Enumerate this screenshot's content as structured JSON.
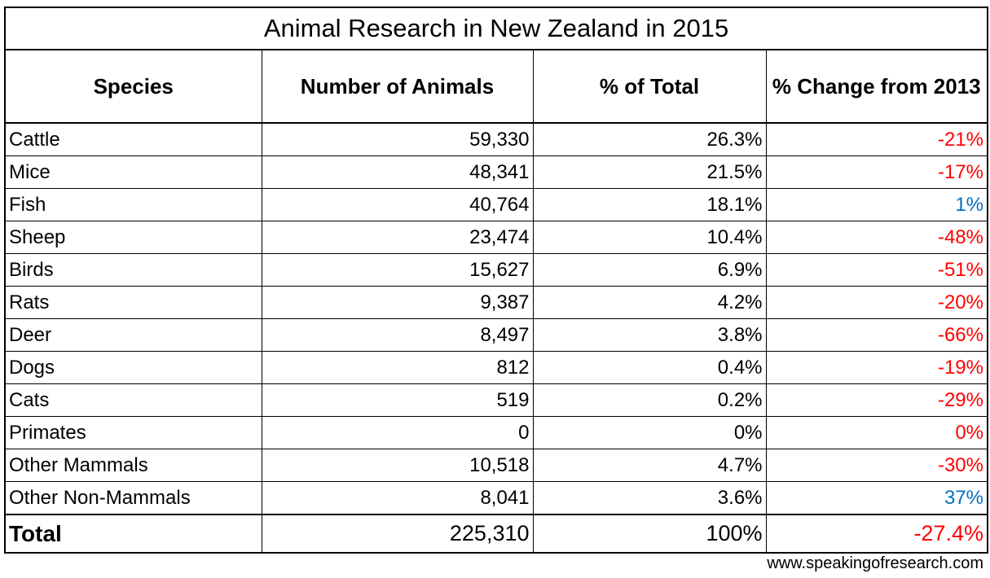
{
  "title": "Animal Research in New Zealand in 2015",
  "table": {
    "header": [
      "Species",
      "Number of Animals",
      "% of Total",
      "% Change from 2013"
    ],
    "rows": [
      [
        "Cattle",
        "59,330",
        "26.3%",
        "-21%"
      ],
      [
        "Mice",
        "48,341",
        "21.5%",
        "-17%"
      ],
      [
        "Fish",
        "40,764",
        "18.1%",
        "1%"
      ],
      [
        "Sheep",
        "23,474",
        "10.4%",
        "-48%"
      ],
      [
        "Birds",
        "15,627",
        "6.9%",
        "-51%"
      ],
      [
        "Rats",
        "9,387",
        "4.2%",
        "-20%"
      ],
      [
        "Deer",
        "8,497",
        "3.8%",
        "-66%"
      ],
      [
        "Dogs",
        "812",
        "0.4%",
        "-19%"
      ],
      [
        "Cats",
        "519",
        "0.2%",
        "-29%"
      ],
      [
        "Primates",
        "0",
        "0%",
        "0%"
      ],
      [
        "Other Mammals",
        "10,518",
        "4.7%",
        "-30%"
      ],
      [
        "Other Non-Mammals",
        "8,041",
        "3.6%",
        "37%"
      ]
    ],
    "change_colors": [
      "#ff0000",
      "#ff0000",
      "#0070c0",
      "#ff0000",
      "#ff0000",
      "#ff0000",
      "#ff0000",
      "#ff0000",
      "#ff0000",
      "#ff0000",
      "#ff0000",
      "#0070c0"
    ],
    "total": [
      "Total",
      "225,310",
      "100%",
      "-27.4%"
    ],
    "total_change_color": "#ff0000"
  },
  "footer": "www.speakingofresearch.com"
}
